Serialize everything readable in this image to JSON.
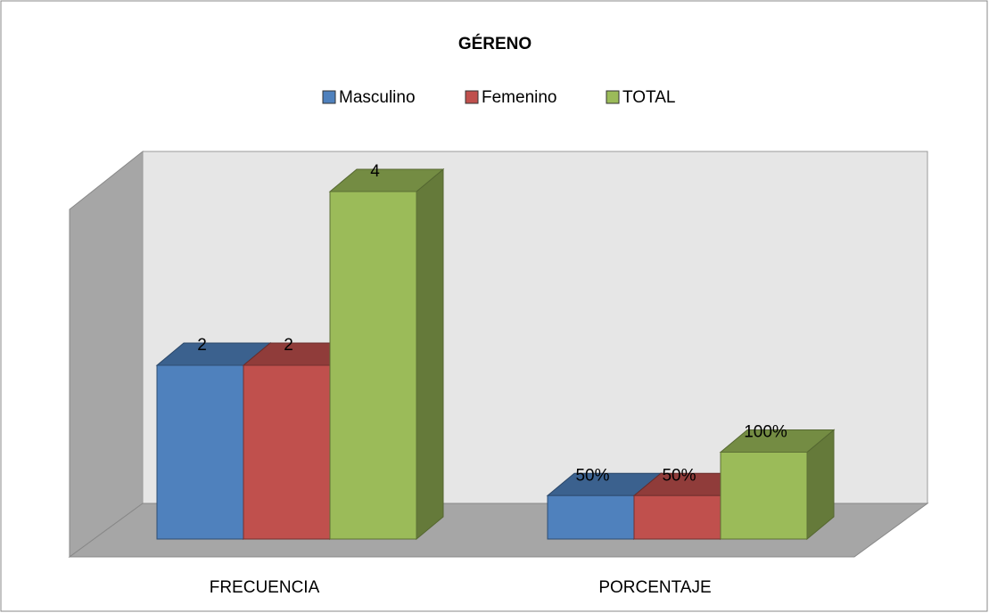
{
  "chart_data": {
    "type": "bar3d",
    "title": "GÉRENO",
    "categories": [
      "FRECUENCIA",
      "PORCENTAJE"
    ],
    "series": [
      {
        "name": "Masculino",
        "color": "#4f81bd",
        "values": [
          2,
          0.5
        ],
        "value_labels": [
          "2",
          "50%"
        ]
      },
      {
        "name": "Femenino",
        "color": "#c0504d",
        "values": [
          2,
          0.5
        ],
        "value_labels": [
          "2",
          "50%"
        ]
      },
      {
        "name": "TOTAL",
        "color": "#9bbb59",
        "values": [
          4,
          1
        ],
        "value_labels": [
          "4",
          "100%"
        ]
      }
    ],
    "legend": "top"
  }
}
